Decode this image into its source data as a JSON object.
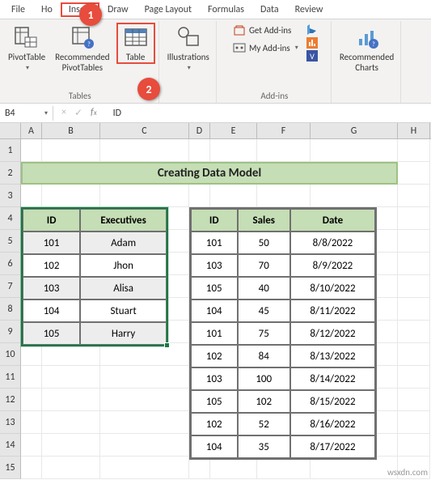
{
  "menu": {
    "file": "File",
    "home": "Ho",
    "insert": "Insert",
    "draw": "Draw",
    "pageLayout": "Page Layout",
    "formulas": "Formulas",
    "data": "Data",
    "review": "Review"
  },
  "badges": {
    "one": "1",
    "two": "2"
  },
  "ribbon": {
    "tables": {
      "pivot": "PivotTable",
      "recommended": "Recommended\nPivotTables",
      "table": "Table",
      "groupLabel": "Tables"
    },
    "illustrations": {
      "label": "Illustrations"
    },
    "addins": {
      "get": "Get Add-ins",
      "my": "My Add-ins",
      "groupLabel": "Add-ins"
    },
    "charts": {
      "recommended": "Recommended\nCharts"
    }
  },
  "nameBox": "B4",
  "formula": "ID",
  "columns": [
    "A",
    "B",
    "C",
    "D",
    "E",
    "F",
    "G",
    "H"
  ],
  "rowCount": 15,
  "titleBand": "Creating Data Model",
  "table1": {
    "headers": [
      "ID",
      "Executives"
    ],
    "rows": [
      [
        "101",
        "Adam"
      ],
      [
        "102",
        "Jhon"
      ],
      [
        "103",
        "Alisa"
      ],
      [
        "104",
        "Stuart"
      ],
      [
        "105",
        "Harry"
      ]
    ]
  },
  "table2": {
    "headers": [
      "ID",
      "Sales",
      "Date"
    ],
    "rows": [
      [
        "101",
        "50",
        "8/8/2022"
      ],
      [
        "103",
        "70",
        "8/9/2022"
      ],
      [
        "105",
        "40",
        "8/10/2022"
      ],
      [
        "104",
        "45",
        "8/11/2022"
      ],
      [
        "101",
        "75",
        "8/12/2022"
      ],
      [
        "102",
        "84",
        "8/13/2022"
      ],
      [
        "103",
        "100",
        "8/14/2022"
      ],
      [
        "105",
        "102",
        "8/15/2022"
      ],
      [
        "102",
        "52",
        "8/16/2022"
      ],
      [
        "104",
        "35",
        "8/17/2022"
      ]
    ]
  },
  "watermark": "wsxdn.com",
  "colors": {
    "accent": "#107c41",
    "callout": "#e74c3c",
    "band": "#c5deb5",
    "bandBorder": "#9dc284",
    "tableBorder": "#707070",
    "stripe": "#ededed"
  }
}
